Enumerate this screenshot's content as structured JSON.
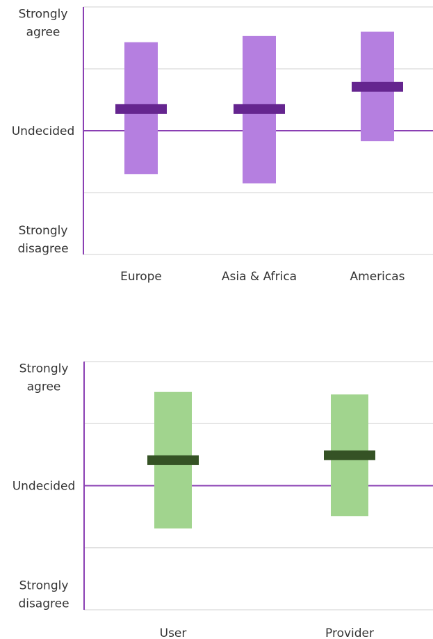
{
  "chart_data": [
    {
      "type": "bar",
      "chart_kind": "range-bar",
      "title": "",
      "xlabel": "",
      "ylabel": "",
      "ylim": [
        -2,
        2
      ],
      "grid": true,
      "y_ticks": [
        {
          "value": 1.75,
          "lines": [
            "Strongly",
            "agree"
          ]
        },
        {
          "value": 0,
          "lines": [
            "Undecided"
          ]
        },
        {
          "value": -1.75,
          "lines": [
            "Strongly",
            "disagree"
          ]
        }
      ],
      "categories": [
        "Europe",
        "Asia & Africa",
        "Americas"
      ],
      "range_low": [
        -0.7,
        -0.85,
        -0.17
      ],
      "range_high": [
        1.43,
        1.53,
        1.6
      ],
      "center": [
        0.35,
        0.35,
        0.71
      ],
      "colors": {
        "range": "#b57fe0",
        "center": "#65258f",
        "midline": "#8a3fb3",
        "axis": "#8a3fb3"
      }
    },
    {
      "type": "bar",
      "chart_kind": "range-bar",
      "title": "",
      "xlabel": "",
      "ylabel": "",
      "ylim": [
        -2,
        2
      ],
      "grid": true,
      "y_ticks": [
        {
          "value": 1.75,
          "lines": [
            "Strongly",
            "agree"
          ]
        },
        {
          "value": 0,
          "lines": [
            "Undecided"
          ]
        },
        {
          "value": -1.75,
          "lines": [
            "Strongly",
            "disagree"
          ]
        }
      ],
      "categories": [
        "User",
        "Provider"
      ],
      "range_low": [
        -0.69,
        -0.49
      ],
      "range_high": [
        1.51,
        1.47
      ],
      "center": [
        0.41,
        0.49
      ],
      "colors": {
        "range": "#a1d48e",
        "center": "#355225",
        "midline": "#8a3fb3",
        "axis": "#8a3fb3"
      }
    }
  ]
}
